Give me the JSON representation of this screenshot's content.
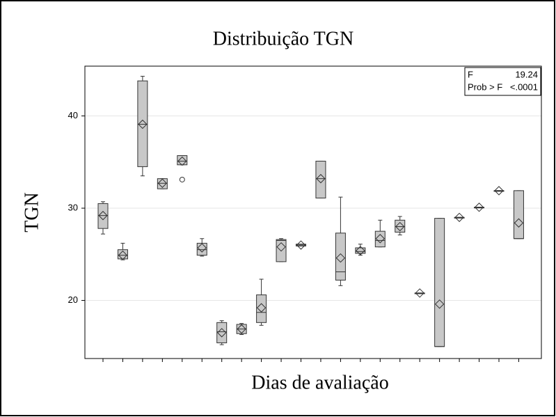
{
  "chart_data": {
    "type": "box",
    "title": "Distribuição TGN",
    "y_label": "TGN",
    "x_label": "Dias de avaliação",
    "categories": [
      null,
      null,
      null,
      null,
      null,
      null,
      null,
      null,
      null,
      null,
      null,
      null,
      null,
      null,
      null,
      null,
      null,
      null,
      null,
      null,
      null,
      null
    ],
    "boxes": [
      {
        "min": 27.2,
        "q1": 27.8,
        "median": 29.2,
        "q3": 30.5,
        "max": 30.7,
        "mean": 29.2
      },
      {
        "min": 24.4,
        "q1": 24.5,
        "median": 24.9,
        "q3": 25.5,
        "max": 26.2,
        "mean": 24.9
      },
      {
        "min": 33.5,
        "q1": 34.5,
        "median": 39.1,
        "q3": 43.8,
        "max": 44.3,
        "mean": 39.1
      },
      {
        "min": 32.1,
        "q1": 32.1,
        "median": 32.7,
        "q3": 33.2,
        "max": 33.2,
        "mean": 32.7
      },
      {
        "min": 34.7,
        "q1": 34.7,
        "median": 35.1,
        "q3": 35.7,
        "max": 35.7,
        "mean": 35.1,
        "outliers": [
          33.1
        ]
      },
      {
        "min": 24.8,
        "q1": 24.9,
        "median": 25.5,
        "q3": 26.2,
        "max": 26.7,
        "mean": 25.7
      },
      {
        "min": 15.2,
        "q1": 15.4,
        "median": 16.6,
        "q3": 17.6,
        "max": 17.8,
        "mean": 16.5
      },
      {
        "min": 16.3,
        "q1": 16.4,
        "median": 16.9,
        "q3": 17.4,
        "max": 17.5,
        "mean": 16.9
      },
      {
        "min": 17.3,
        "q1": 17.6,
        "median": 18.7,
        "q3": 20.6,
        "max": 22.3,
        "mean": 19.2
      },
      {
        "min": 24.2,
        "q1": 24.2,
        "median": 26.5,
        "q3": 26.6,
        "max": 26.7,
        "mean": 25.8
      },
      {
        "min": 25.9,
        "q1": 25.9,
        "median": 26.0,
        "q3": 26.1,
        "max": 26.1,
        "mean": 26.0
      },
      {
        "min": 31.1,
        "q1": 31.1,
        "median": 33.2,
        "q3": 35.1,
        "max": 35.1,
        "mean": 33.2
      },
      {
        "min": 21.6,
        "q1": 22.2,
        "median": 23.1,
        "q3": 27.3,
        "max": 31.2,
        "mean": 24.6
      },
      {
        "min": 24.9,
        "q1": 25.1,
        "median": 25.3,
        "q3": 25.7,
        "max": 26.1,
        "mean": 25.4
      },
      {
        "min": 25.8,
        "q1": 25.8,
        "median": 26.5,
        "q3": 27.5,
        "max": 28.7,
        "mean": 26.7
      },
      {
        "min": 27.1,
        "q1": 27.4,
        "median": 28.0,
        "q3": 28.7,
        "max": 29.1,
        "mean": 28.0
      },
      {
        "min": 20.8,
        "q1": 20.8,
        "median": 20.8,
        "q3": 20.8,
        "max": 20.8,
        "mean": 20.8
      },
      {
        "min": 15.0,
        "q1": 15.0,
        "median": 15.0,
        "q3": 28.9,
        "max": 28.9,
        "mean": 19.6
      },
      {
        "min": 29.0,
        "q1": 29.0,
        "median": 29.0,
        "q3": 29.0,
        "max": 29.0,
        "mean": 29.0
      },
      {
        "min": 30.1,
        "q1": 30.1,
        "median": 30.1,
        "q3": 30.1,
        "max": 30.1,
        "mean": 30.1
      },
      {
        "min": 31.9,
        "q1": 31.9,
        "median": 31.9,
        "q3": 31.9,
        "max": 31.9,
        "mean": 31.9
      },
      {
        "min": 26.7,
        "q1": 26.7,
        "median": 26.7,
        "q3": 31.9,
        "max": 31.9,
        "mean": 28.4
      }
    ],
    "box_color": "#c8c8c8",
    "ylim": [
      13.7,
      45.4
    ],
    "yticks": [
      20,
      30,
      40
    ],
    "grid": true,
    "stats": [
      {
        "label": "F",
        "value": 19.24
      },
      {
        "label": "Prob > F",
        "value": "<.0001"
      }
    ]
  }
}
